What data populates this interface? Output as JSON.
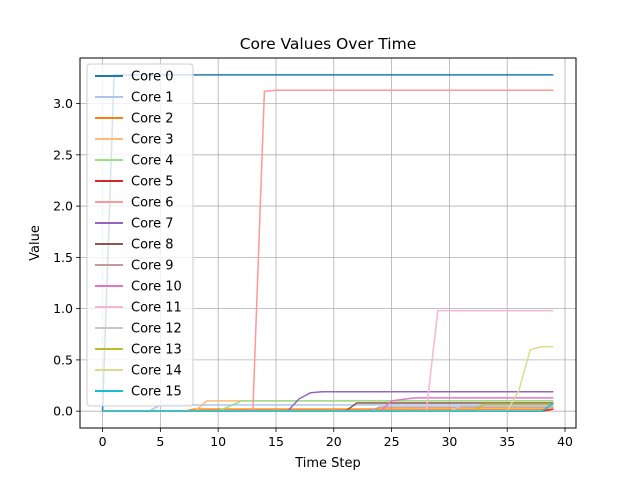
{
  "chart_data": {
    "type": "line",
    "title": "Core Values Over Time",
    "xlabel": "Time Step",
    "ylabel": "Value",
    "xlim": [
      -1.95,
      40.95
    ],
    "ylim": [
      -0.164,
      3.444
    ],
    "xticks": [
      0,
      5,
      10,
      15,
      20,
      25,
      30,
      35,
      40
    ],
    "yticks": [
      0.0,
      0.5,
      1.0,
      1.5,
      2.0,
      2.5,
      3.0
    ],
    "grid": true,
    "legend_position": "upper-left",
    "series": [
      {
        "name": "Core 0",
        "color": "#1f77b4",
        "points": [
          [
            0,
            0
          ],
          [
            1,
            3.28
          ],
          [
            39,
            3.28
          ]
        ]
      },
      {
        "name": "Core 1",
        "color": "#aec7e8",
        "points": [
          [
            0,
            0
          ],
          [
            4,
            0
          ],
          [
            5,
            0.06
          ],
          [
            39,
            0.06
          ]
        ]
      },
      {
        "name": "Core 2",
        "color": "#ff7f0e",
        "points": [
          [
            0,
            0
          ],
          [
            7,
            0
          ],
          [
            8,
            0.02
          ],
          [
            39,
            0.02
          ]
        ]
      },
      {
        "name": "Core 3",
        "color": "#ffbb78",
        "points": [
          [
            0,
            0
          ],
          [
            8,
            0
          ],
          [
            9,
            0.1
          ],
          [
            39,
            0.1
          ]
        ]
      },
      {
        "name": "Core 4",
        "color": "#98df8a",
        "points": [
          [
            0,
            0
          ],
          [
            10,
            0
          ],
          [
            11,
            0.05
          ],
          [
            12,
            0.1
          ],
          [
            39,
            0.1
          ]
        ]
      },
      {
        "name": "Core 5",
        "color": "#d62728",
        "points": [
          [
            0,
            0
          ],
          [
            38,
            0
          ],
          [
            39,
            0.02
          ]
        ]
      },
      {
        "name": "Core 6",
        "color": "#ff9896",
        "points": [
          [
            0,
            0
          ],
          [
            13,
            0
          ],
          [
            14,
            3.12
          ],
          [
            15,
            3.13
          ],
          [
            39,
            3.13
          ]
        ]
      },
      {
        "name": "Core 7",
        "color": "#9467bd",
        "points": [
          [
            0,
            0
          ],
          [
            16,
            0
          ],
          [
            17,
            0.12
          ],
          [
            18,
            0.18
          ],
          [
            19,
            0.19
          ],
          [
            39,
            0.19
          ]
        ]
      },
      {
        "name": "Core 8",
        "color": "#8c564b",
        "points": [
          [
            0,
            0
          ],
          [
            21,
            0
          ],
          [
            22,
            0.08
          ],
          [
            39,
            0.08
          ]
        ]
      },
      {
        "name": "Core 9",
        "color": "#c49c94",
        "points": [
          [
            0,
            0
          ],
          [
            23,
            0
          ],
          [
            24,
            0.04
          ],
          [
            39,
            0.04
          ]
        ]
      },
      {
        "name": "Core 10",
        "color": "#e377c2",
        "points": [
          [
            0,
            0
          ],
          [
            24,
            0
          ],
          [
            25,
            0.1
          ],
          [
            27,
            0.13
          ],
          [
            39,
            0.13
          ]
        ]
      },
      {
        "name": "Core 11",
        "color": "#f7b6d2",
        "points": [
          [
            0,
            0
          ],
          [
            28,
            0
          ],
          [
            29,
            0.98
          ],
          [
            39,
            0.98
          ]
        ]
      },
      {
        "name": "Core 12",
        "color": "#c7c7c7",
        "points": [
          [
            0,
            0
          ],
          [
            30,
            0
          ],
          [
            31,
            0.05
          ],
          [
            39,
            0.05
          ]
        ]
      },
      {
        "name": "Core 13",
        "color": "#bcbd22",
        "points": [
          [
            0,
            0
          ],
          [
            32,
            0
          ],
          [
            33,
            0.07
          ],
          [
            39,
            0.07
          ]
        ]
      },
      {
        "name": "Core 14",
        "color": "#dbdb8d",
        "points": [
          [
            0,
            0
          ],
          [
            35,
            0
          ],
          [
            36,
            0.2
          ],
          [
            37,
            0.6
          ],
          [
            38,
            0.63
          ],
          [
            39,
            0.63
          ]
        ]
      },
      {
        "name": "Core 15",
        "color": "#17becf",
        "points": [
          [
            0,
            0
          ],
          [
            38,
            0
          ],
          [
            39,
            0.08
          ]
        ]
      }
    ]
  }
}
